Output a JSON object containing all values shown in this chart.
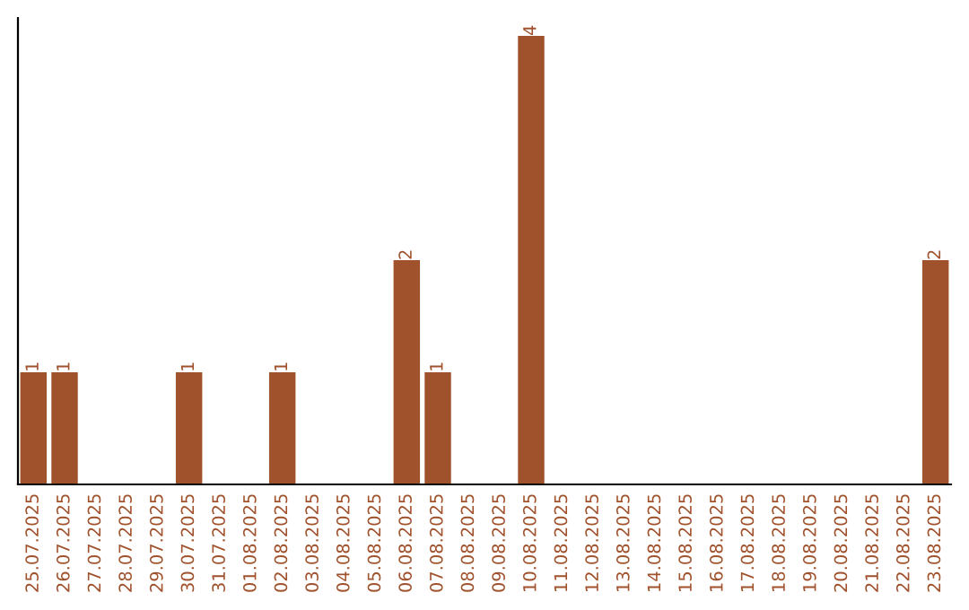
{
  "chart_data": {
    "type": "bar",
    "categories": [
      "25.07.2025",
      "26.07.2025",
      "27.07.2025",
      "28.07.2025",
      "29.07.2025",
      "30.07.2025",
      "31.07.2025",
      "01.08.2025",
      "02.08.2025",
      "03.08.2025",
      "04.08.2025",
      "05.08.2025",
      "06.08.2025",
      "07.08.2025",
      "08.08.2025",
      "09.08.2025",
      "10.08.2025",
      "11.08.2025",
      "12.08.2025",
      "13.08.2025",
      "14.08.2025",
      "15.08.2025",
      "16.08.2025",
      "17.08.2025",
      "18.08.2025",
      "19.08.2025",
      "20.08.2025",
      "21.08.2025",
      "22.08.2025",
      "23.08.2025"
    ],
    "values": [
      1,
      1,
      0,
      0,
      0,
      1,
      0,
      0,
      1,
      0,
      0,
      0,
      2,
      1,
      0,
      0,
      4,
      0,
      0,
      0,
      0,
      0,
      0,
      0,
      0,
      0,
      0,
      0,
      0,
      2
    ],
    "value_labels": [
      "1",
      "1",
      null,
      null,
      null,
      "1",
      null,
      null,
      "1",
      null,
      null,
      null,
      "2",
      "1",
      null,
      null,
      "4",
      null,
      null,
      null,
      null,
      null,
      null,
      null,
      null,
      null,
      null,
      null,
      null,
      "2"
    ],
    "color": "#a0522d",
    "grid": false,
    "legend": false
  }
}
